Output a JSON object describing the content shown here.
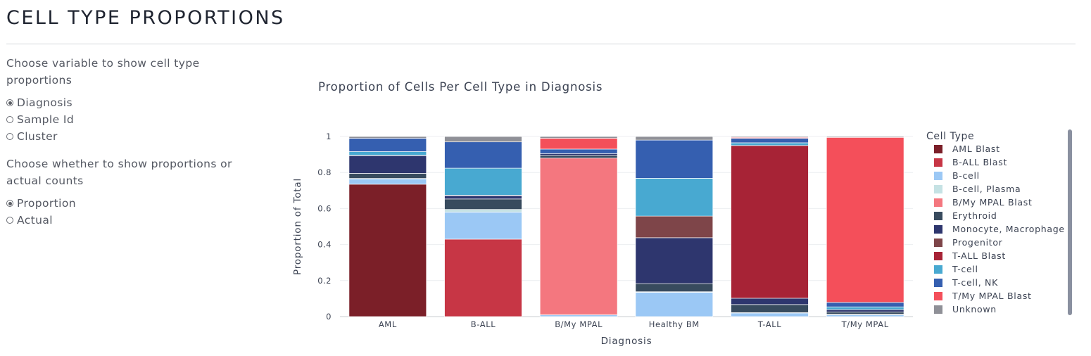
{
  "page": {
    "title": "CELL TYPE PROPORTIONS"
  },
  "controls": {
    "variable": {
      "label": "Choose variable to show cell type proportions",
      "options": [
        {
          "label": "Diagnosis",
          "checked": true
        },
        {
          "label": "Sample Id",
          "checked": false
        },
        {
          "label": "Cluster",
          "checked": false
        }
      ]
    },
    "mode": {
      "label": "Choose whether to show proportions or actual counts",
      "options": [
        {
          "label": "Proportion",
          "checked": true
        },
        {
          "label": "Actual",
          "checked": false
        }
      ]
    }
  },
  "chart_data": {
    "type": "bar",
    "stacked": true,
    "title": "Proportion of Cells Per Cell Type in Diagnosis",
    "xlabel": "Diagnosis",
    "ylabel": "Proportion of Total",
    "ylim": [
      0,
      1
    ],
    "yticks": [
      "0",
      "0.2",
      "0.4",
      "0.6",
      "0.8",
      "1"
    ],
    "grid": true,
    "legend_title": "Cell Type",
    "legend_position": "right",
    "categories": [
      "AML",
      "B-ALL",
      "B/My MPAL",
      "Healthy BM",
      "T-ALL",
      "T/My MPAL"
    ],
    "series": [
      {
        "name": "AML Blast",
        "color": "#7b1f28",
        "values": [
          0.735,
          0,
          0,
          0,
          0,
          0
        ]
      },
      {
        "name": "B-ALL Blast",
        "color": "#c73645",
        "values": [
          0,
          0.43,
          0,
          0,
          0,
          0
        ]
      },
      {
        "name": "B-cell",
        "color": "#9bc8f5",
        "values": [
          0.03,
          0.15,
          0.01,
          0.135,
          0.02,
          0.01
        ]
      },
      {
        "name": "B-cell, Plasma",
        "color": "#c5e2e4",
        "values": [
          0.002,
          0.015,
          0,
          0.003,
          0.002,
          0.003
        ]
      },
      {
        "name": "B/My MPAL Blast",
        "color": "#f4777f",
        "values": [
          0,
          0,
          0.87,
          0,
          0,
          0
        ]
      },
      {
        "name": "Erythroid",
        "color": "#384b5e",
        "values": [
          0.028,
          0.058,
          0.015,
          0.045,
          0.045,
          0.013
        ]
      },
      {
        "name": "Monocyte, Macrophage",
        "color": "#2e366e",
        "values": [
          0.1,
          0.02,
          0.01,
          0.255,
          0.035,
          0.013
        ]
      },
      {
        "name": "Progenitor",
        "color": "#7e4549",
        "values": [
          0.001,
          0.001,
          0,
          0.12,
          0,
          0
        ]
      },
      {
        "name": "T-ALL Blast",
        "color": "#a72336",
        "values": [
          0,
          0,
          0,
          0,
          0.848,
          0
        ]
      },
      {
        "name": "T-cell",
        "color": "#48a9d1",
        "values": [
          0.02,
          0.15,
          0,
          0.21,
          0.015,
          0.015
        ]
      },
      {
        "name": "T-cell, NK",
        "color": "#355fb0",
        "values": [
          0.074,
          0.146,
          0.025,
          0.212,
          0.025,
          0.025
        ]
      },
      {
        "name": "T/My MPAL Blast",
        "color": "#f44f5a",
        "values": [
          0,
          0,
          0.06,
          0,
          0.005,
          0.916
        ]
      },
      {
        "name": "Unknown",
        "color": "#8f9097",
        "values": [
          0.01,
          0.03,
          0.01,
          0.02,
          0.005,
          0.005
        ]
      }
    ]
  }
}
